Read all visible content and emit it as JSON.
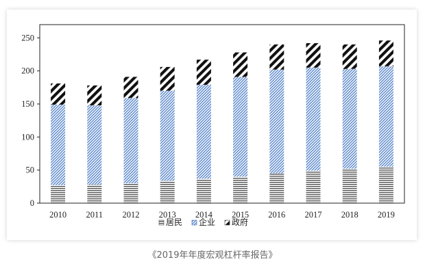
{
  "chart_data": {
    "type": "bar",
    "stacked": true,
    "categories": [
      "2010",
      "2011",
      "2012",
      "2013",
      "2014",
      "2015",
      "2016",
      "2017",
      "2018",
      "2019"
    ],
    "series": [
      {
        "name": "居民",
        "values": [
          27,
          28,
          30,
          34,
          37,
          40,
          45,
          49,
          52,
          55
        ]
      },
      {
        "name": "企业",
        "values": [
          122,
          120,
          129,
          136,
          142,
          151,
          157,
          156,
          151,
          152
        ]
      },
      {
        "name": "政府",
        "values": [
          32,
          30,
          32,
          36,
          38,
          37,
          38,
          37,
          37,
          39
        ]
      }
    ],
    "yticks": [
      0,
      50,
      100,
      150,
      200,
      250
    ],
    "ylim": [
      0,
      270
    ],
    "legend_position": "bottom-center",
    "grid": false
  },
  "caption": "《2019年年度宏观杠杆率报告》"
}
